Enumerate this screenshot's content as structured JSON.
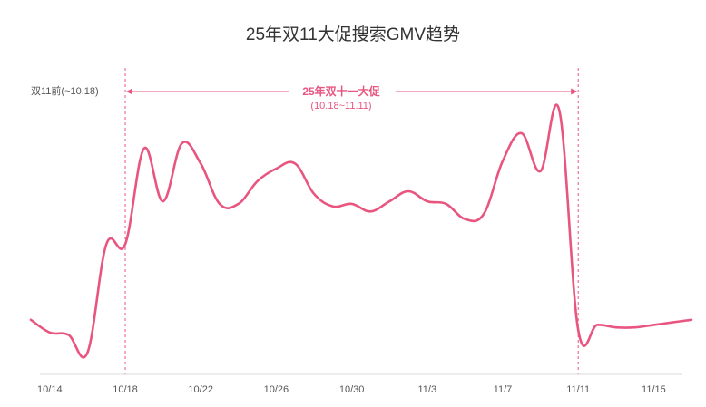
{
  "chart_data": {
    "type": "line",
    "title": "25年双11大促搜索GMV趋势",
    "xlabel": "",
    "ylabel": "",
    "x": [
      "10/13",
      "10/14",
      "10/15",
      "10/16",
      "10/17",
      "10/18",
      "10/19",
      "10/20",
      "10/21",
      "10/22",
      "10/23",
      "10/24",
      "10/25",
      "10/26",
      "10/27",
      "10/28",
      "10/29",
      "10/30",
      "10/31",
      "11/1",
      "11/2",
      "11/3",
      "11/4",
      "11/5",
      "11/6",
      "11/7",
      "11/8",
      "11/9",
      "11/10",
      "11/11",
      "11/12",
      "11/13",
      "11/14",
      "11/15",
      "11/16",
      "11/17"
    ],
    "tick_labels": [
      "10/14",
      "10/18",
      "10/22",
      "10/26",
      "10/30",
      "11/3",
      "11/7",
      "11/11",
      "11/15"
    ],
    "series": [
      {
        "values": [
          17,
          12,
          11,
          4,
          47,
          47,
          85,
          64,
          87,
          79,
          63,
          63,
          72,
          77,
          79,
          67,
          62,
          63,
          60,
          64,
          68,
          64,
          63,
          57,
          59,
          80,
          91,
          76,
          100,
          13,
          15,
          14,
          14,
          15,
          16,
          17
        ],
        "color": "#e8557f"
      }
    ],
    "yrange": [
      -8,
      108
    ],
    "grid": false,
    "annotations": {
      "pre_period_label": "双11前(~10.18)",
      "period_label": "25年双十一大促",
      "period_range": "(10.18~11.11)",
      "period_start": "10/18",
      "period_end": "11/11",
      "accent_color": "#e8557f"
    }
  }
}
